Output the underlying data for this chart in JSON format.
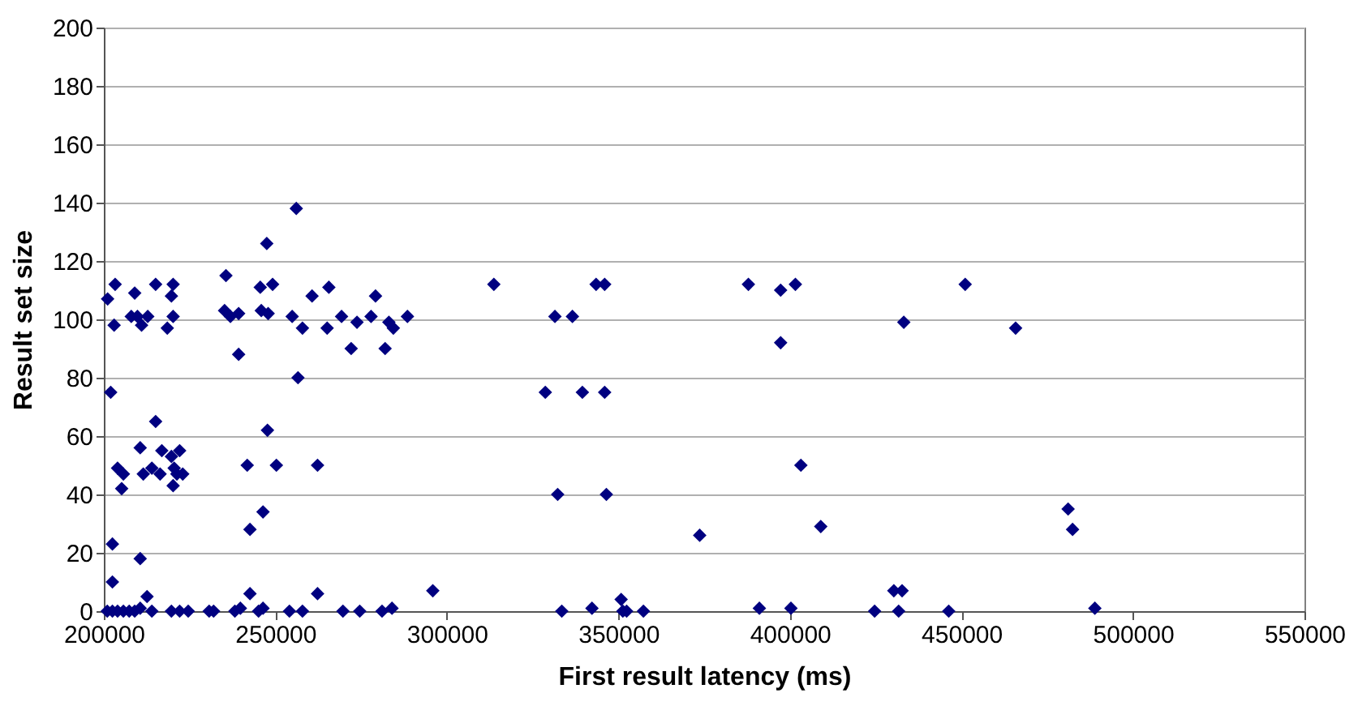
{
  "chart_data": {
    "type": "scatter",
    "xlabel": "First result latency (ms)",
    "ylabel": "Result set size",
    "marker": "diamond",
    "grid": "y",
    "xlim": [
      200000,
      550000
    ],
    "xticks": [
      200000,
      250000,
      300000,
      350000,
      400000,
      450000,
      500000,
      550000
    ],
    "ylim": [
      0,
      200
    ],
    "yticks": [
      0,
      20,
      40,
      60,
      80,
      100,
      120,
      140,
      160,
      180,
      200
    ],
    "series": [
      {
        "color": "#000080",
        "x": [
          201100,
          203300,
          203000,
          202000,
          202500,
          202500,
          204000,
          205700,
          205200,
          209000,
          208000,
          209800,
          211000,
          212800,
          215100,
          218500,
          219700,
          220200,
          220200,
          210600,
          211500,
          214000,
          215100,
          216900,
          216400,
          219700,
          220500,
          220200,
          221300,
          222100,
          223000,
          210600,
          212600,
          201000,
          202500,
          204000,
          205700,
          207400,
          209000,
          210600,
          214000,
          219700,
          222100,
          224600,
          230700,
          232000,
          235600,
          235200,
          236900,
          239300,
          239300,
          245600,
          247500,
          245900,
          247900,
          249200,
          256100,
          254900,
          257900,
          256600,
          260700,
          265600,
          265100,
          269300,
          272100,
          273800,
          277900,
          279200,
          282000,
          283100,
          284400,
          288500,
          241800,
          242600,
          246400,
          247700,
          250300,
          262300,
          242600,
          262300,
          295900,
          238200,
          239800,
          245100,
          246400,
          254100,
          257900,
          269700,
          274600,
          281100,
          284000,
          313700,
          331500,
          336600,
          343500,
          346000,
          387900,
          397300,
          401600,
          397300,
          328700,
          339500,
          346000,
          332300,
          346500,
          403200,
          373700,
          409000,
          333500,
          342300,
          350800,
          351300,
          352400,
          357300,
          391100,
          400300,
          424700,
          430300,
          433200,
          451100,
          465800,
          481100,
          482400,
          432700,
          431700,
          446300,
          488900
        ],
        "values": [
          107,
          112,
          98,
          75,
          23,
          10,
          49,
          47,
          42,
          109,
          101,
          101,
          98,
          101,
          112,
          97,
          108,
          112,
          101,
          56,
          47,
          49,
          65,
          55,
          47,
          53,
          49,
          43,
          47,
          55,
          47,
          18,
          5,
          0,
          0,
          0,
          0,
          0,
          0,
          1,
          0,
          0,
          0,
          0,
          0,
          0,
          115,
          103,
          101,
          102,
          88,
          111,
          126,
          103,
          102,
          112,
          138,
          101,
          97,
          80,
          108,
          111,
          97,
          101,
          90,
          99,
          101,
          108,
          90,
          99,
          97,
          101,
          50,
          28,
          34,
          62,
          50,
          50,
          6,
          6,
          7,
          0,
          1,
          0,
          1,
          0,
          0,
          0,
          0,
          0,
          1,
          112,
          101,
          101,
          112,
          112,
          112,
          110,
          112,
          92,
          75,
          75,
          75,
          40,
          40,
          50,
          26,
          29,
          0,
          1,
          4,
          0,
          0,
          0,
          1,
          1,
          0,
          7,
          99,
          112,
          97,
          35,
          28,
          7,
          0,
          0,
          1
        ]
      }
    ]
  }
}
